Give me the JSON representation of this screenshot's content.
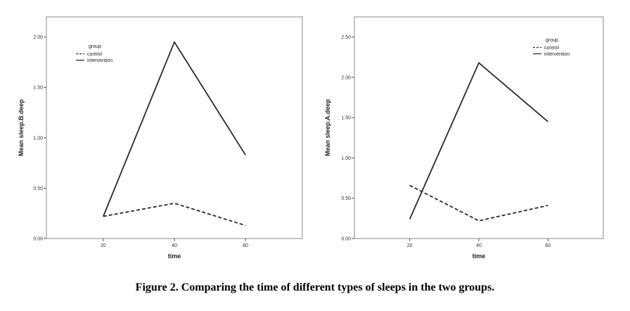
{
  "caption": "Figure 2. Comparing the time of different types of sleeps in the two groups.",
  "legend_title": "group",
  "chart_data": [
    {
      "type": "line",
      "xlabel": "time",
      "ylabel": "Mean sleep.B.deep",
      "x": [
        20,
        40,
        60
      ],
      "xlim": [
        4,
        76
      ],
      "ylim": [
        0,
        2.2
      ],
      "yticks": [
        "0.00",
        "0.50",
        "1.00",
        "1.50",
        "2.00"
      ],
      "ytick_values": [
        0,
        0.5,
        1.0,
        1.5,
        2.0
      ],
      "xticks": [
        "20",
        "40",
        "60"
      ],
      "legend_title": "group",
      "legend": "top-left",
      "grid": false,
      "series": [
        {
          "name": "control",
          "style": "dashed",
          "values": [
            0.22,
            0.35,
            0.13
          ]
        },
        {
          "name": "intervention",
          "style": "solid",
          "values": [
            0.22,
            1.95,
            0.83
          ]
        }
      ]
    },
    {
      "type": "line",
      "xlabel": "time",
      "ylabel": "Mean sleep.A.deep",
      "x": [
        20,
        40,
        60
      ],
      "xlim": [
        4,
        76
      ],
      "ylim": [
        0,
        2.75
      ],
      "yticks": [
        "0.00",
        "0.50",
        "1.00",
        "1.50",
        "2.00",
        "2.50"
      ],
      "ytick_values": [
        0,
        0.5,
        1.0,
        1.5,
        2.0,
        2.5
      ],
      "xticks": [
        "20",
        "40",
        "60"
      ],
      "legend_title": "group",
      "legend": "top-right",
      "grid": false,
      "series": [
        {
          "name": "control",
          "style": "dashed",
          "values": [
            0.66,
            0.22,
            0.41
          ]
        },
        {
          "name": "intervention",
          "style": "solid",
          "values": [
            0.24,
            2.18,
            1.45
          ]
        }
      ]
    }
  ]
}
